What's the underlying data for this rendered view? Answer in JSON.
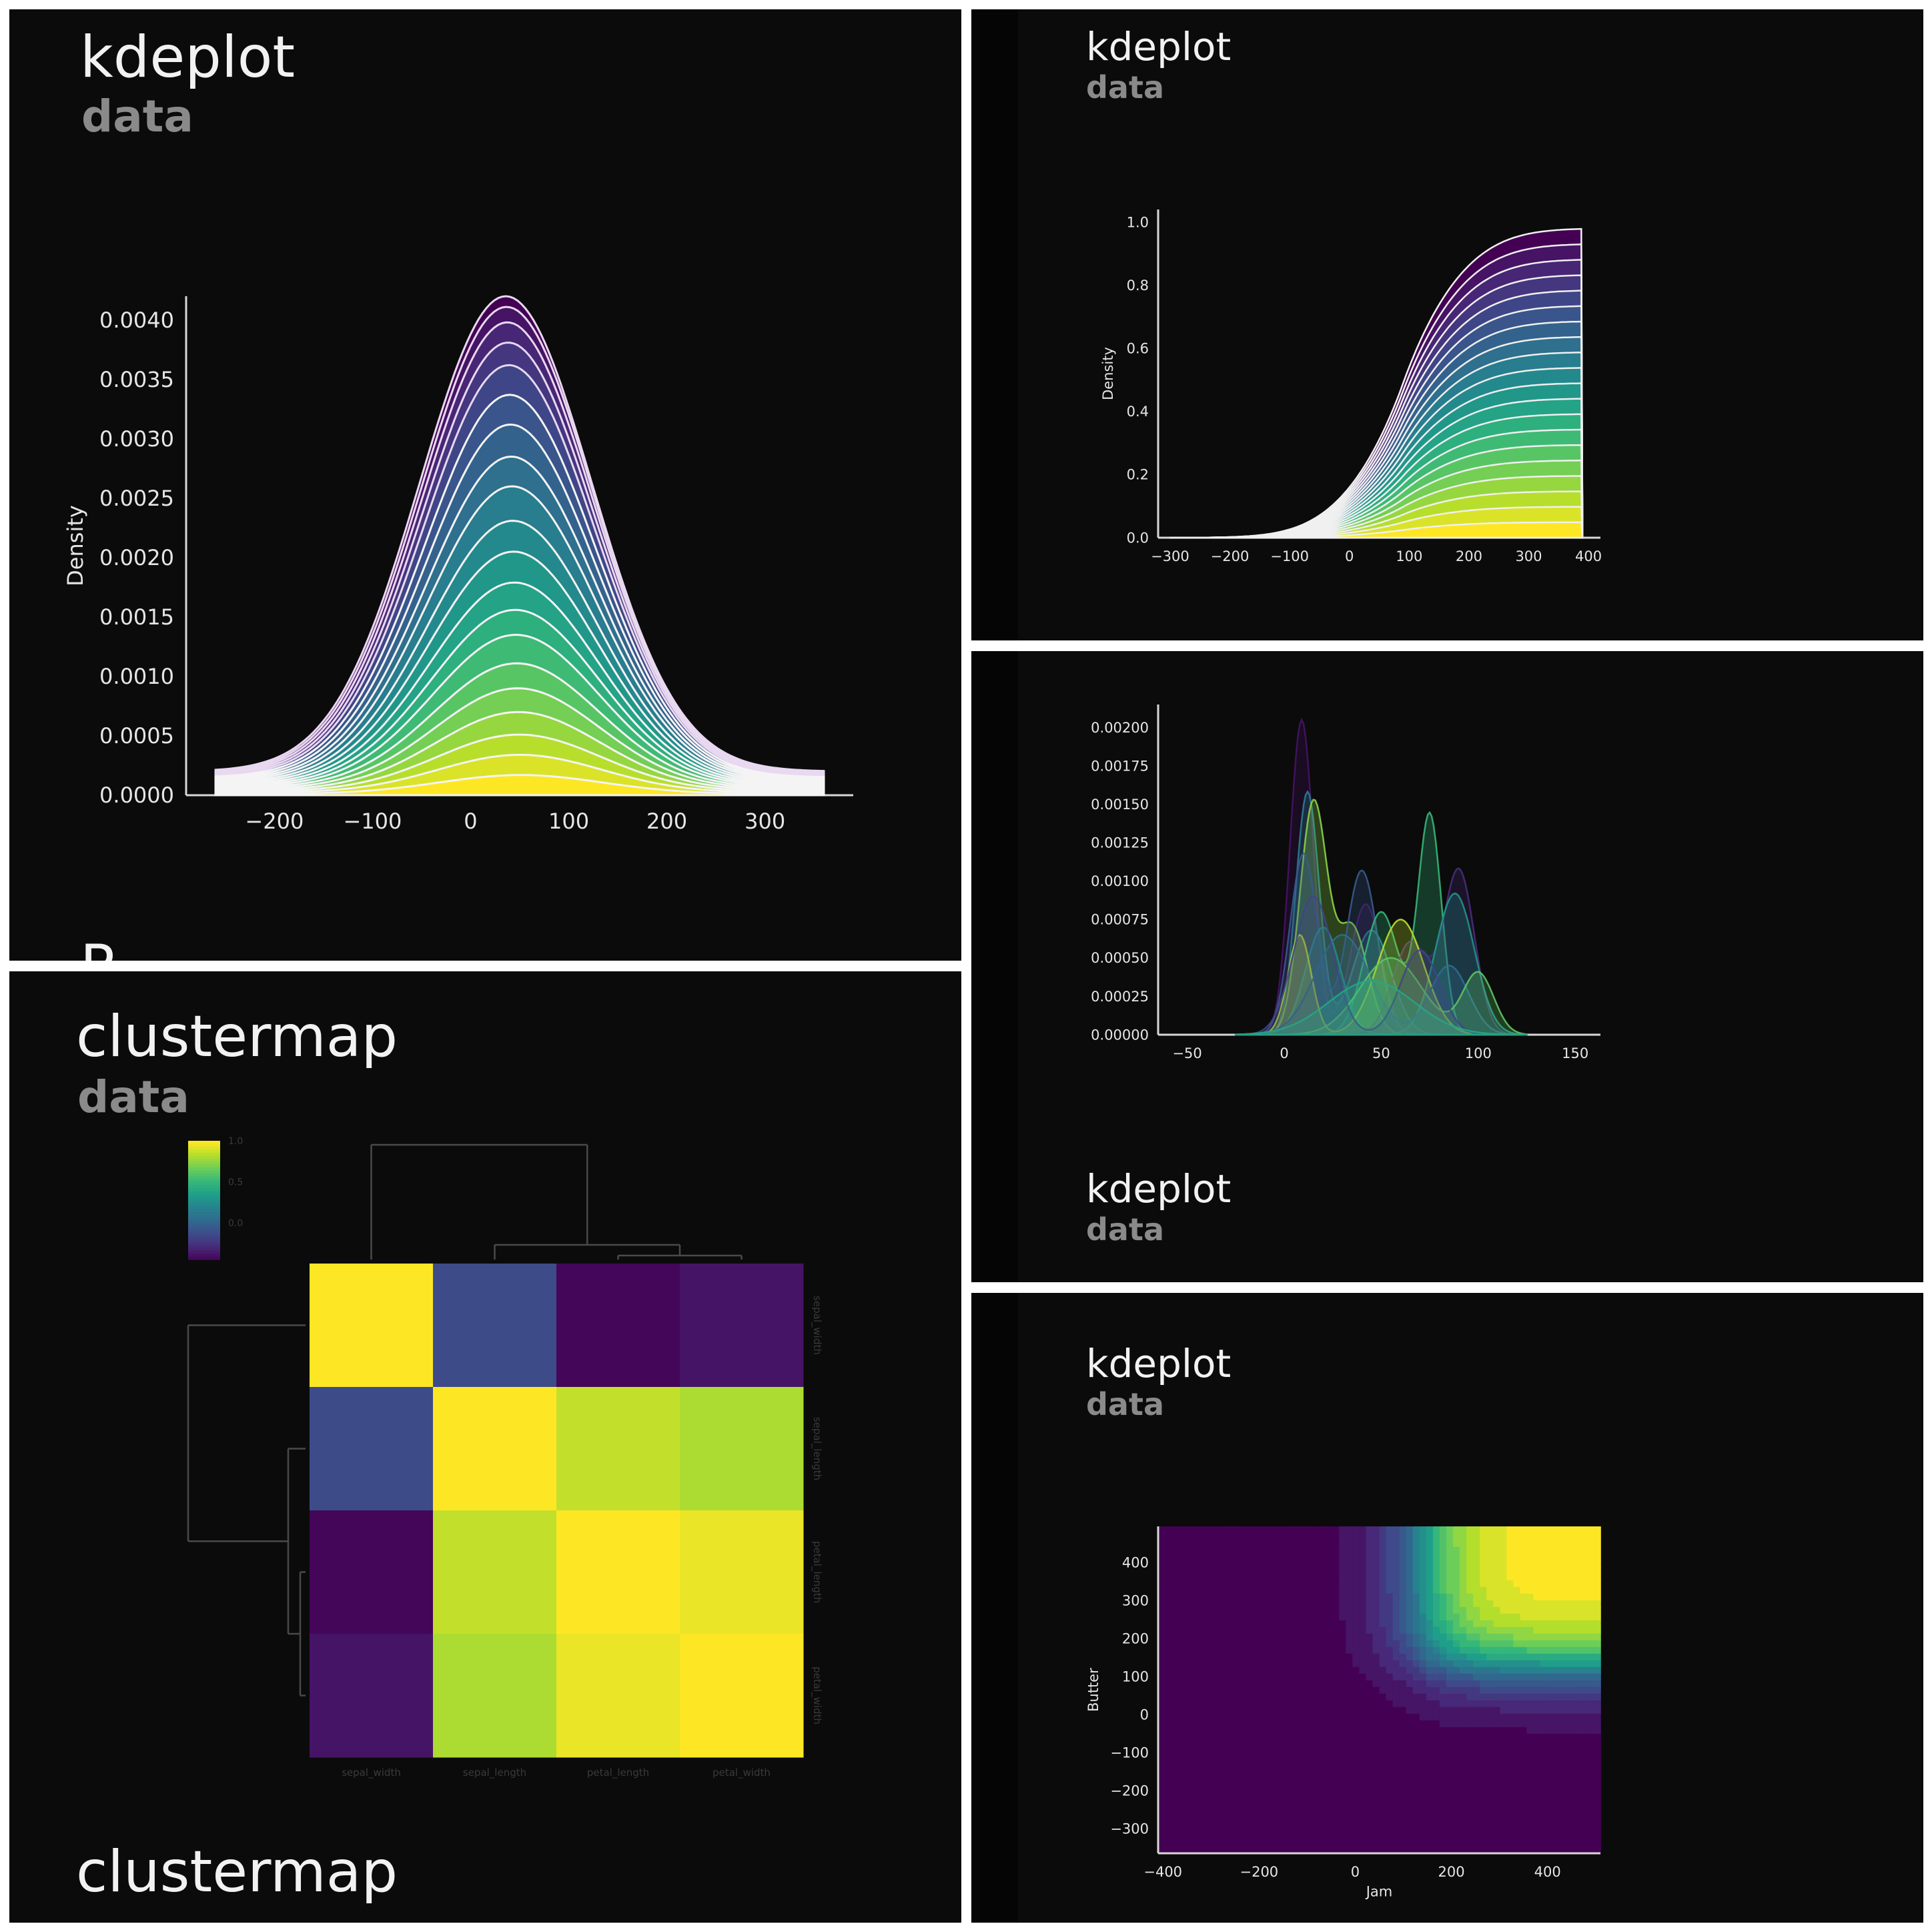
{
  "panels": {
    "p1": {
      "title": "kdeplot",
      "subtitle": "data",
      "cutoff_text": "R"
    },
    "p2": {
      "title": "kdeplot",
      "subtitle": "data"
    },
    "p3": {
      "title": "kdeplot",
      "subtitle": "data"
    },
    "p4": {
      "title": "kdeplot",
      "subtitle": "data"
    },
    "p5": {
      "title": "clustermap",
      "subtitle": "data",
      "bottom_title": "clustermap"
    }
  },
  "colormap": "viridis",
  "chart_data": [
    {
      "id": "p1",
      "type": "area",
      "description": "stacked kde curves (multiple='stack'), 20 layers, filled viridis, white edges",
      "xlabel": "",
      "ylabel": "Density",
      "x_ticks": [
        "−200",
        "−100",
        "0",
        "100",
        "200",
        "300"
      ],
      "y_ticks": [
        "0.0000",
        "0.0005",
        "0.0010",
        "0.0015",
        "0.0020",
        "0.0025",
        "0.0030",
        "0.0035",
        "0.0040"
      ],
      "xlim": [
        -290,
        390
      ],
      "ylim": [
        0,
        0.0042
      ],
      "x_range": [
        -260,
        360
      ],
      "layers": 20,
      "top_peak": 0.004,
      "layer_peaks": [
        0.00016,
        0.00032,
        0.00048,
        0.00066,
        0.00085,
        0.00105,
        0.00128,
        0.00148,
        0.0017,
        0.00195,
        0.0022,
        0.00248,
        0.00272,
        0.00298,
        0.00322,
        0.00346,
        0.00364,
        0.0038,
        0.00392,
        0.004
      ],
      "mean": 35,
      "sd": 88
    },
    {
      "id": "p2",
      "type": "area",
      "description": "stacked cumulative kde (cumulative=True), 20 layers",
      "xlabel": "",
      "ylabel": "Density",
      "x_ticks": [
        "−300",
        "−200",
        "−100",
        "0",
        "100",
        "200",
        "300",
        "400"
      ],
      "y_ticks": [
        "0.0",
        "0.2",
        "0.4",
        "0.6",
        "0.8",
        "1.0"
      ],
      "xlim": [
        -320,
        420
      ],
      "ylim": [
        0,
        1.04
      ],
      "x_range": [
        -300,
        390
      ],
      "layers": 20,
      "top_value": 0.98,
      "mean": 90,
      "sd": 105
    },
    {
      "id": "p3",
      "type": "area",
      "description": "overlapping semi-transparent kde curves, many groups",
      "xlabel": "",
      "ylabel": "",
      "x_ticks": [
        "−50",
        "0",
        "50",
        "100",
        "150"
      ],
      "y_ticks": [
        "0.00000",
        "0.00025",
        "0.00050",
        "0.00075",
        "0.00100",
        "0.00125",
        "0.00150",
        "0.00175",
        "0.00200"
      ],
      "xlim": [
        -65,
        163
      ],
      "ylim": [
        0,
        0.00215
      ],
      "series": [
        {
          "peaks": [
            [
              9,
              0.00205,
              6
            ],
            [
              42,
              0.00085,
              8
            ]
          ]
        },
        {
          "peaks": [
            [
              12,
              0.00158,
              6
            ],
            [
              45,
              0.00068,
              10
            ]
          ]
        },
        {
          "peaks": [
            [
              15,
              0.0015,
              7
            ],
            [
              35,
              0.0007,
              8
            ]
          ]
        },
        {
          "peaks": [
            [
              10,
              0.00118,
              7
            ],
            [
              40,
              0.00107,
              8
            ]
          ]
        },
        {
          "peaks": [
            [
              75,
              0.00143,
              6
            ],
            [
              50,
              0.0008,
              9
            ]
          ]
        },
        {
          "peaks": [
            [
              90,
              0.00107,
              8
            ],
            [
              65,
              0.0006,
              9
            ]
          ]
        },
        {
          "peaks": [
            [
              88,
              0.00092,
              10
            ],
            [
              20,
              0.0007,
              9
            ]
          ]
        },
        {
          "peaks": [
            [
              60,
              0.00075,
              12
            ],
            [
              8,
              0.00065,
              6
            ]
          ]
        },
        {
          "peaks": [
            [
              30,
              0.00065,
              14
            ],
            [
              85,
              0.00045,
              10
            ]
          ]
        },
        {
          "peaks": [
            [
              55,
              0.0005,
              16
            ],
            [
              100,
              0.0004,
              8
            ]
          ]
        },
        {
          "peaks": [
            [
              15,
              0.0009,
              10
            ],
            [
              70,
              0.00055,
              10
            ]
          ]
        },
        {
          "peaks": [
            [
              45,
              0.00035,
              22
            ]
          ]
        }
      ]
    },
    {
      "id": "p4",
      "type": "heatmap",
      "description": "filled bivariate kde (cumulative), viridis, highest in upper-right",
      "xlabel": "Jam",
      "ylabel": "Butter",
      "x_ticks": [
        "−400",
        "−200",
        "0",
        "200",
        "400"
      ],
      "y_ticks": [
        "−300",
        "−200",
        "−100",
        "0",
        "100",
        "200",
        "300",
        "400"
      ],
      "xlim": [
        -410,
        510
      ],
      "ylim": [
        -365,
        495
      ]
    },
    {
      "id": "p5",
      "type": "heatmap",
      "description": "clustered correlation matrix with dendrograms",
      "labels": [
        "sepal_width",
        "sepal_length",
        "petal_length",
        "petal_width"
      ],
      "values": [
        [
          1.0,
          -0.12,
          -0.43,
          -0.37
        ],
        [
          -0.12,
          1.0,
          0.87,
          0.82
        ],
        [
          -0.43,
          0.87,
          1.0,
          0.96
        ],
        [
          -0.37,
          0.82,
          0.96,
          1.0
        ]
      ],
      "colorbar_ticks": [
        "1.0",
        "0.5",
        "0.0"
      ],
      "vmin": -0.45,
      "vmax": 1.0
    }
  ]
}
